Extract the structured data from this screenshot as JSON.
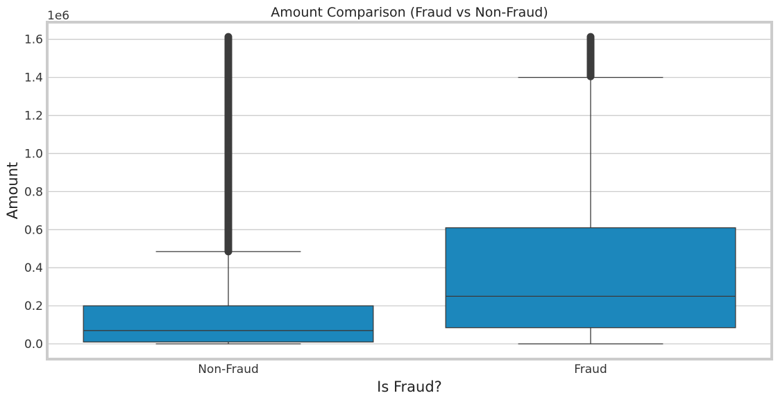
{
  "chart_data": {
    "type": "box",
    "title": "Amount Comparison (Fraud vs Non-Fraud)",
    "xlabel": "Is Fraud?",
    "ylabel": "Amount",
    "y_offset_label": "1e6",
    "ylim": [
      -0.08,
      1.69
    ],
    "yticks": [
      0.0,
      0.2,
      0.4,
      0.6,
      0.8,
      1.0,
      1.2,
      1.4,
      1.6
    ],
    "ytick_labels": [
      "0.0",
      "0.2",
      "0.4",
      "0.6",
      "0.8",
      "1.0",
      "1.2",
      "1.4",
      "1.6"
    ],
    "grid": true,
    "box_color": "#1c87bc",
    "line_color": "#3a3a3a",
    "outlier_color": "#3d3d3d",
    "categories": [
      "Non-Fraud",
      "Fraud"
    ],
    "boxes": [
      {
        "category": "Non-Fraud",
        "whisker_low": 0.0,
        "q1": 0.01,
        "median": 0.07,
        "q3": 0.2,
        "whisker_high": 0.485,
        "outliers_min": 0.485,
        "outliers_max": 1.615
      },
      {
        "category": "Fraud",
        "whisker_low": 0.0,
        "q1": 0.085,
        "median": 0.25,
        "q3": 0.61,
        "whisker_high": 1.4,
        "outliers_min": 1.405,
        "outliers_max": 1.615
      }
    ]
  }
}
